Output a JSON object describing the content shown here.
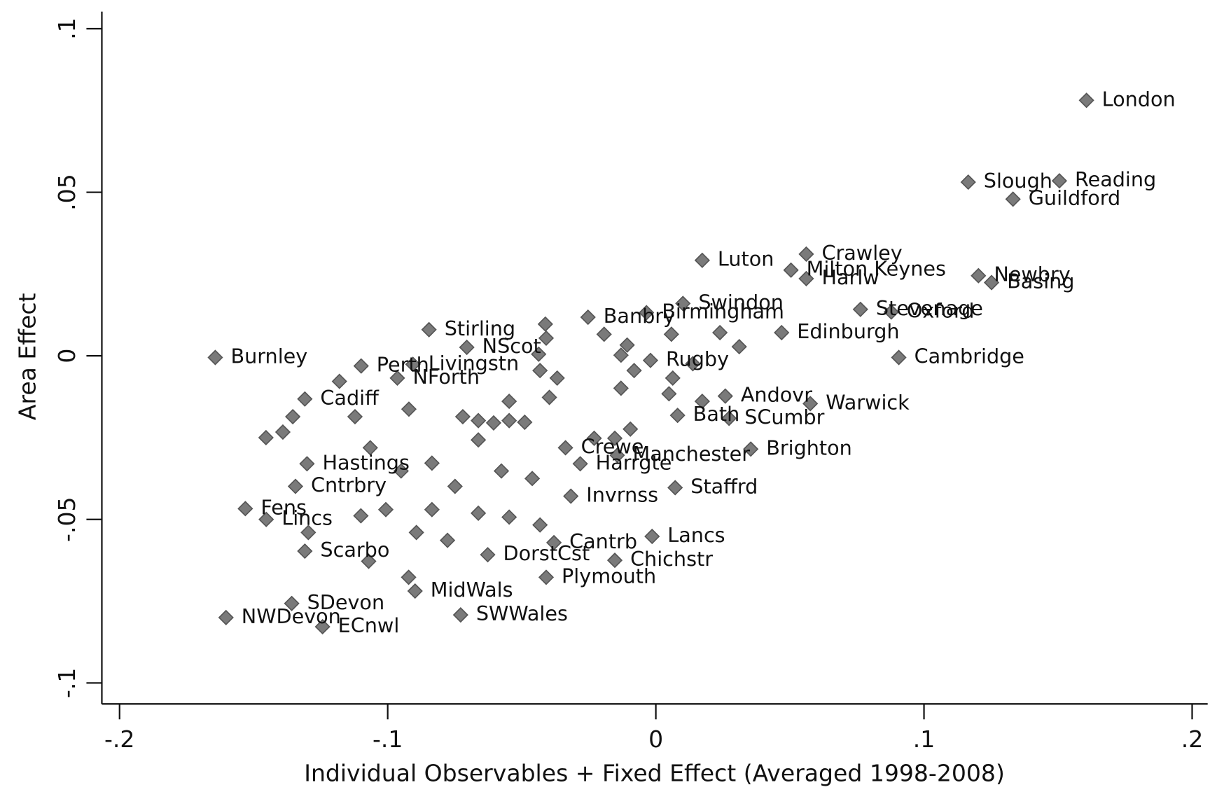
{
  "chart_data": {
    "type": "scatter",
    "x_label": "Individual Observables + Fixed Effect (Averaged 1998-2008)",
    "y_label": "Area Effect",
    "color": "#7a7a7a",
    "xlim": [
      -0.2066,
      0.2058
    ],
    "ylim": [
      -0.1064,
      0.1052
    ],
    "xticks": [
      {
        "value": -0.2,
        "label": "-.2"
      },
      {
        "value": -0.1,
        "label": "-.1"
      },
      0,
      {
        "value": 0.1,
        "label": ".1"
      },
      {
        "value": 0.2,
        "label": ".2"
      }
    ],
    "yticks": [
      {
        "value": -0.1,
        "label": "-.1"
      },
      {
        "value": -0.05,
        "label": "-.05"
      },
      0,
      {
        "value": 0.05,
        "label": ".05"
      },
      {
        "value": 0.1,
        "label": ".1"
      }
    ],
    "labels": [
      "London",
      "Slough",
      "Reading",
      "Guildford",
      "Luton",
      "Crawley",
      "Milton Keynes",
      "Harlw",
      "Newbry",
      "Basing",
      "Stevenage",
      "Oxford",
      "Swindon",
      "Banbry",
      "Birmingham",
      "Edinburgh",
      "Cambridge",
      "Rugby",
      "Burnley",
      "Stirling",
      "NScot",
      "Perth",
      "Livingstn",
      "NForth",
      "Andovr",
      "Bath",
      "SCumbr",
      "Warwick",
      "Brighton",
      "Staffrd",
      "Crewe",
      "Manchester",
      "Harrgte",
      "Invrnss",
      "Fens",
      "Lincs",
      "Cadiff",
      "Hastings",
      "Cntrbry",
      "Scarbo",
      "SDevon",
      "NWDevon",
      "ECnwl",
      "SWWales",
      "MidWals",
      "Plymouth",
      "DorstCst",
      "Cantrb",
      "Lancs",
      "Chichstr",
      null,
      null,
      null,
      null,
      null,
      null,
      null,
      null,
      null,
      null,
      null,
      null,
      null,
      null,
      null,
      null,
      null,
      null,
      null,
      null,
      null,
      null,
      null,
      null,
      null,
      null,
      null,
      null,
      null,
      null,
      null,
      null,
      null,
      null,
      null,
      null,
      null,
      null,
      null,
      null,
      null,
      null,
      null,
      null,
      null,
      null,
      null,
      null,
      null,
      null,
      null
    ],
    "x": [
      0.1606,
      0.1165,
      0.1505,
      0.1332,
      0.0173,
      0.0561,
      0.0504,
      0.0561,
      0.1203,
      0.1252,
      0.0763,
      0.0878,
      0.0101,
      -0.0253,
      -0.0035,
      0.0469,
      0.0906,
      -0.002,
      -0.1643,
      -0.0846,
      -0.0705,
      -0.1099,
      -0.0906,
      -0.0964,
      0.0259,
      0.0081,
      0.0273,
      0.0576,
      0.0354,
      0.0072,
      -0.0337,
      -0.0144,
      -0.0282,
      -0.0317,
      -0.1531,
      -0.1453,
      -0.1309,
      -0.1301,
      -0.1344,
      -0.1309,
      -0.1358,
      -0.1603,
      -0.1243,
      -0.0728,
      -0.0898,
      -0.0409,
      -0.0627,
      -0.038,
      -0.0014,
      -0.0153,
      -0.0412,
      -0.0409,
      -0.0437,
      -0.0432,
      -0.0368,
      -0.0397,
      -0.0193,
      -0.013,
      -0.0107,
      -0.0081,
      -0.013,
      0.0058,
      0.0063,
      0.0049,
      0.0239,
      0.0311,
      0.0138,
      0.0173,
      -0.0095,
      -0.0153,
      -0.023,
      -0.118,
      -0.1354,
      -0.1454,
      -0.1391,
      -0.11,
      -0.1296,
      -0.1071,
      -0.0922,
      -0.0749,
      -0.0662,
      -0.0605,
      -0.0547,
      -0.0489,
      -0.072,
      -0.0835,
      -0.095,
      -0.0576,
      -0.0461,
      -0.1007,
      -0.0835,
      -0.0662,
      -0.0547,
      -0.0432,
      -0.0893,
      -0.0777,
      -0.0547,
      -0.0662,
      -0.1065,
      -0.0921,
      -0.1122
    ],
    "values": [
      0.0781,
      0.0531,
      0.0535,
      0.0479,
      0.0292,
      0.0311,
      0.0262,
      0.0236,
      0.0245,
      0.0224,
      0.0142,
      0.0134,
      0.016,
      0.0118,
      0.0132,
      0.0071,
      -0.0005,
      -0.0014,
      -0.0005,
      0.008,
      0.0026,
      -0.0031,
      -0.0026,
      -0.0068,
      -0.0123,
      -0.0182,
      -0.0191,
      -0.0146,
      -0.0285,
      -0.0403,
      -0.0281,
      -0.0304,
      -0.033,
      -0.0429,
      -0.0467,
      -0.05,
      -0.0132,
      -0.033,
      -0.0399,
      -0.0597,
      -0.0757,
      -0.08,
      -0.0828,
      -0.0792,
      -0.0719,
      -0.0677,
      -0.0608,
      -0.0571,
      -0.0552,
      -0.0625,
      0.0097,
      0.0054,
      0.0005,
      -0.0045,
      -0.0068,
      -0.0127,
      0.0066,
      0.0002,
      0.0033,
      -0.0045,
      -0.0099,
      0.0066,
      -0.0068,
      -0.0116,
      0.0071,
      0.0028,
      -0.0024,
      -0.0139,
      -0.0224,
      -0.0252,
      -0.0252,
      -0.0078,
      -0.0186,
      -0.025,
      -0.0233,
      -0.0489,
      -0.054,
      -0.0628,
      -0.0677,
      -0.0399,
      -0.0198,
      -0.0205,
      -0.0198,
      -0.0203,
      -0.0186,
      -0.0328,
      -0.0352,
      -0.0352,
      -0.0375,
      -0.047,
      -0.047,
      -0.0481,
      -0.0493,
      -0.0517,
      -0.054,
      -0.0564,
      -0.0139,
      -0.0257,
      -0.0281,
      -0.0163,
      -0.0186
    ]
  }
}
